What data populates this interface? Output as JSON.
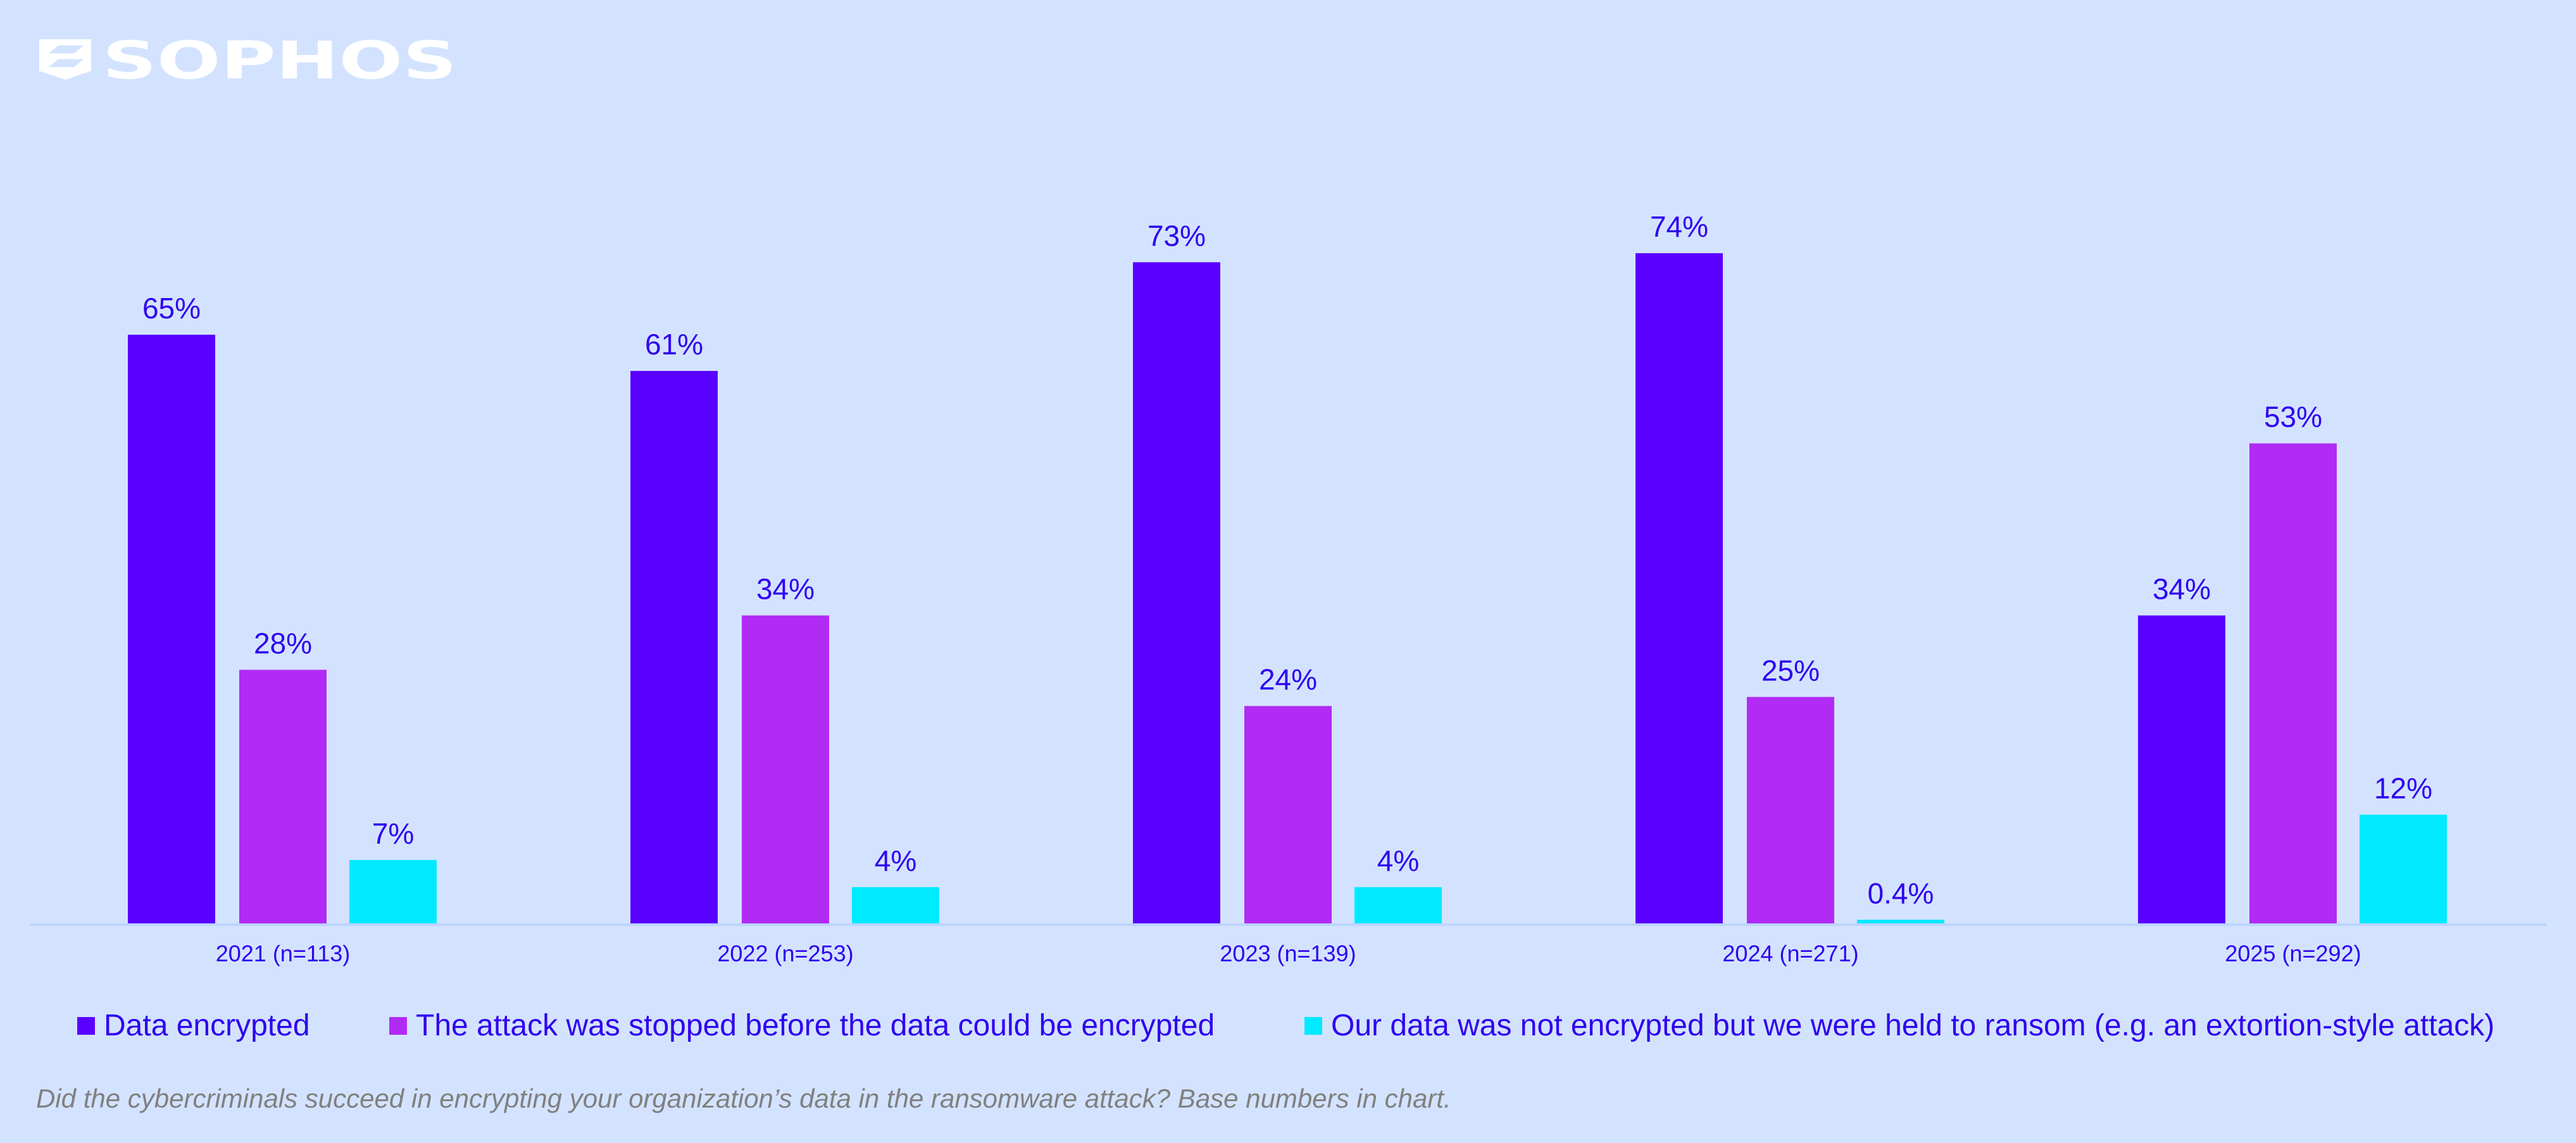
{
  "logo": {
    "text": "SOPHOS",
    "color": "#ffffff"
  },
  "chart_data": {
    "type": "bar",
    "categories": [
      "2021 (n=113)",
      "2022 (n=253)",
      "2023 (n=139)",
      "2024 (n=271)",
      "2025 (n=292)"
    ],
    "series": [
      {
        "name": "Data encrypted",
        "color": "#5a00ff",
        "values": [
          65,
          61,
          73,
          74,
          34
        ],
        "labels": [
          "65%",
          "61%",
          "73%",
          "74%",
          "34%"
        ]
      },
      {
        "name": "The attack was stopped before the data could be encrypted",
        "color": "#b12bf5",
        "values": [
          28,
          34,
          24,
          25,
          53
        ],
        "labels": [
          "28%",
          "34%",
          "24%",
          "25%",
          "53%"
        ]
      },
      {
        "name": "Our data was not encrypted but we were held to ransom (e.g. an extortion-style attack)",
        "color": "#00eaff",
        "values": [
          7,
          4,
          4,
          0.4,
          12
        ],
        "labels": [
          "7%",
          "4%",
          "4%",
          "0.4%",
          "12%"
        ]
      }
    ],
    "ylim": [
      0,
      100
    ],
    "grid": false,
    "legend": "bottom",
    "label_color": "#2f00f0",
    "axis_color": "#bcd4ff"
  },
  "footnote": "Did the cybercriminals succeed in encrypting your organization’s data in the ransomware attack?  Base numbers in chart."
}
